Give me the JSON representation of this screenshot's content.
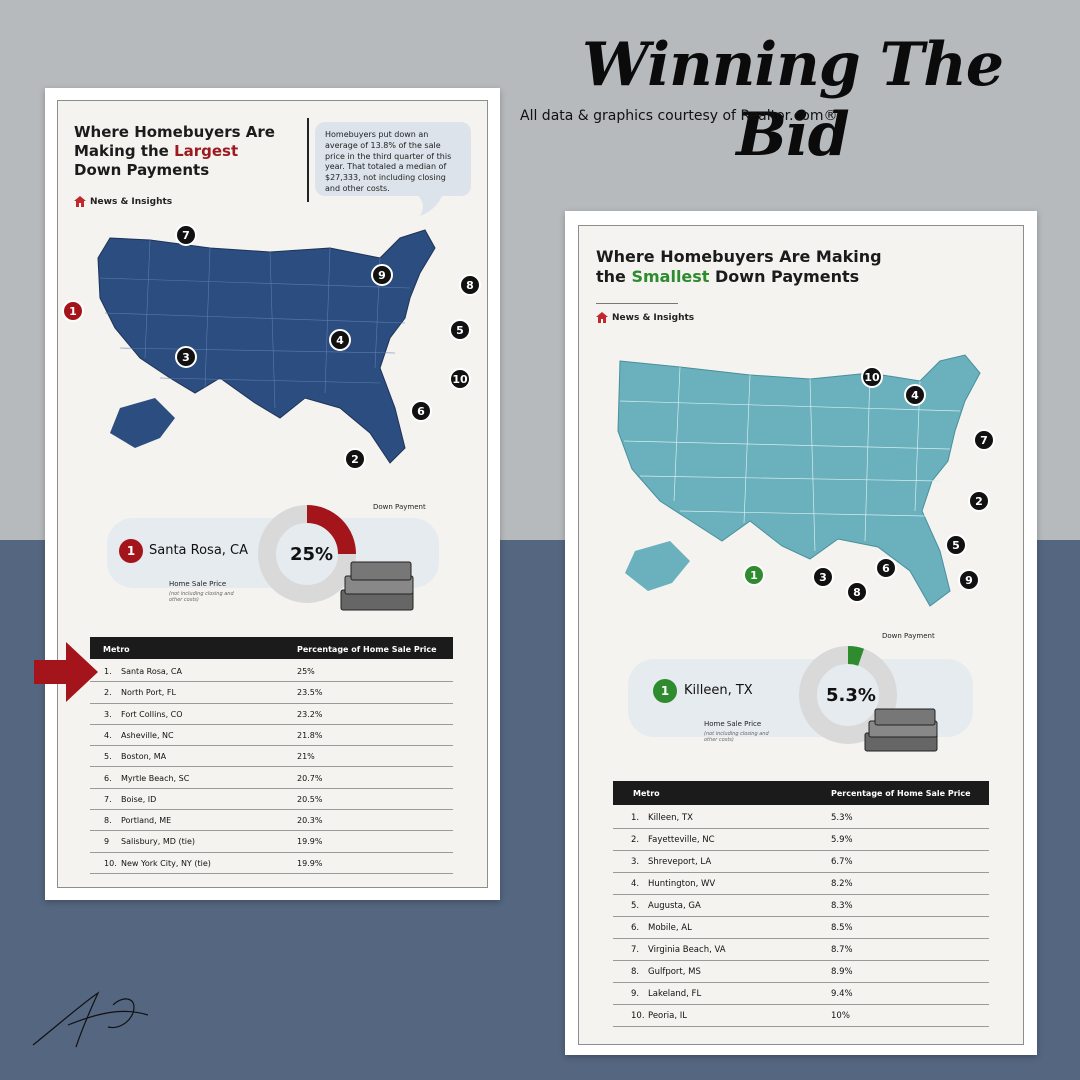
{
  "headline": "Winning The Bid",
  "credit": "All data & graphics courtesy of Realtor.com®",
  "colors": {
    "bg_top": "#b6babd",
    "bg_bottom": "#546680",
    "largest_accent": "#9b1a1f",
    "smallest_accent": "#2e8b2e",
    "map_left": "#2c4d7f",
    "map_right": "#6ab0bd"
  },
  "left_card": {
    "title_line1": "Where Homebuyers Are",
    "title_line2a": "Making the ",
    "title_highlight": "Largest",
    "title_line3": "Down Payments",
    "brand": "News & Insights",
    "note": "Homebuyers put down an average of 13.8% of the sale price in the third quarter of this year. That totaled a median of $27,333, not including closing and other costs.",
    "callouts": [
      "1",
      "2",
      "3",
      "4",
      "5",
      "6",
      "7",
      "8",
      "9",
      "10"
    ],
    "feature": {
      "rank": "1",
      "city": "Santa Rosa, CA",
      "percent": "25%",
      "percent_value": 25,
      "down_payment_label": "Down Payment",
      "sale_price_label": "Home Sale Price",
      "sale_price_note": "(not including closing and other costs)"
    },
    "table": {
      "headers": [
        "Metro",
        "Percentage of Home Sale Price"
      ],
      "rows": [
        {
          "rank": "1.",
          "metro": "Santa Rosa, CA",
          "pct": "25%"
        },
        {
          "rank": "2.",
          "metro": "North Port, FL",
          "pct": "23.5%"
        },
        {
          "rank": "3.",
          "metro": "Fort Collins, CO",
          "pct": "23.2%"
        },
        {
          "rank": "4.",
          "metro": "Asheville, NC",
          "pct": "21.8%"
        },
        {
          "rank": "5.",
          "metro": "Boston, MA",
          "pct": "21%"
        },
        {
          "rank": "6.",
          "metro": "Myrtle Beach, SC",
          "pct": "20.7%"
        },
        {
          "rank": "7.",
          "metro": "Boise, ID",
          "pct": "20.5%"
        },
        {
          "rank": "8.",
          "metro": "Portland, ME",
          "pct": "20.3%"
        },
        {
          "rank": "9",
          "metro": "Salisbury, MD (tie)",
          "pct": "19.9%"
        },
        {
          "rank": "10.",
          "metro": "New York City, NY (tie)",
          "pct": "19.9%"
        }
      ]
    }
  },
  "right_card": {
    "title_line1": "Where Homebuyers Are Making",
    "title_line2a": "the ",
    "title_highlight": "Smallest",
    "title_line2b": " Down Payments",
    "brand": "News & Insights",
    "callouts": [
      "1",
      "2",
      "3",
      "4",
      "5",
      "6",
      "7",
      "8",
      "9",
      "10"
    ],
    "feature": {
      "rank": "1",
      "city": "Killeen, TX",
      "percent": "5.3%",
      "percent_value": 5.3,
      "down_payment_label": "Down Payment",
      "sale_price_label": "Home Sale Price",
      "sale_price_note": "(not including closing and other costs)"
    },
    "table": {
      "headers": [
        "Metro",
        "Percentage of Home Sale Price"
      ],
      "rows": [
        {
          "rank": "1.",
          "metro": "Killeen, TX",
          "pct": "5.3%"
        },
        {
          "rank": "2.",
          "metro": "Fayetteville, NC",
          "pct": "5.9%"
        },
        {
          "rank": "3.",
          "metro": "Shreveport, LA",
          "pct": "6.7%"
        },
        {
          "rank": "4.",
          "metro": "Huntington, WV",
          "pct": "8.2%"
        },
        {
          "rank": "5.",
          "metro": "Augusta, GA",
          "pct": "8.3%"
        },
        {
          "rank": "6.",
          "metro": "Mobile, AL",
          "pct": "8.5%"
        },
        {
          "rank": "7.",
          "metro": "Virginia Beach, VA",
          "pct": "8.7%"
        },
        {
          "rank": "8.",
          "metro": "Gulfport, MS",
          "pct": "8.9%"
        },
        {
          "rank": "9.",
          "metro": "Lakeland, FL",
          "pct": "9.4%"
        },
        {
          "rank": "10.",
          "metro": "Peoria, IL",
          "pct": "10%"
        }
      ]
    }
  }
}
